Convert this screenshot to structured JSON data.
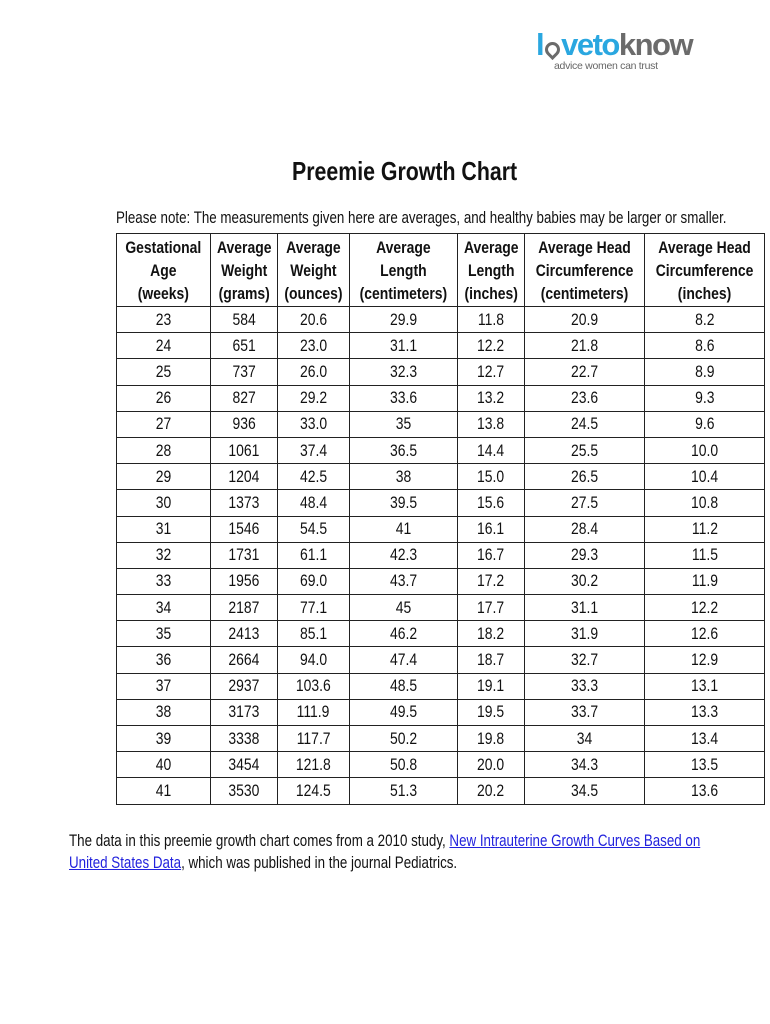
{
  "logo": {
    "brand": "lovetoknow",
    "tagline": "advice women can trust",
    "colors": {
      "blue": "#2aa7e0",
      "gray": "#6b6b6b"
    }
  },
  "title": "Preemie Growth Chart",
  "note": "Please note:  The measurements given here are averages, and healthy babies may be larger or smaller.",
  "table": {
    "headers": [
      [
        "Gestational",
        "Age",
        "(weeks)"
      ],
      [
        "Average",
        "Weight",
        "(grams)"
      ],
      [
        "Average",
        "Weight",
        "(ounces)"
      ],
      [
        "Average",
        "Length",
        "(centimeters)"
      ],
      [
        "Average",
        "Length",
        "(inches)"
      ],
      [
        "Average Head",
        "Circumference",
        "(centimeters)"
      ],
      [
        "Average Head",
        "Circumference",
        "(inches)"
      ]
    ],
    "rows": [
      [
        "23",
        "584",
        "20.6",
        "29.9",
        "11.8",
        "20.9",
        "8.2"
      ],
      [
        "24",
        "651",
        "23.0",
        "31.1",
        "12.2",
        "21.8",
        "8.6"
      ],
      [
        "25",
        "737",
        "26.0",
        "32.3",
        "12.7",
        "22.7",
        "8.9"
      ],
      [
        "26",
        "827",
        "29.2",
        "33.6",
        "13.2",
        "23.6",
        "9.3"
      ],
      [
        "27",
        "936",
        "33.0",
        "35",
        "13.8",
        "24.5",
        "9.6"
      ],
      [
        "28",
        "1061",
        "37.4",
        "36.5",
        "14.4",
        "25.5",
        "10.0"
      ],
      [
        "29",
        "1204",
        "42.5",
        "38",
        "15.0",
        "26.5",
        "10.4"
      ],
      [
        "30",
        "1373",
        "48.4",
        "39.5",
        "15.6",
        "27.5",
        "10.8"
      ],
      [
        "31",
        "1546",
        "54.5",
        "41",
        "16.1",
        "28.4",
        "11.2"
      ],
      [
        "32",
        "1731",
        "61.1",
        "42.3",
        "16.7",
        "29.3",
        "11.5"
      ],
      [
        "33",
        "1956",
        "69.0",
        "43.7",
        "17.2",
        "30.2",
        "11.9"
      ],
      [
        "34",
        "2187",
        "77.1",
        "45",
        "17.7",
        "31.1",
        "12.2"
      ],
      [
        "35",
        "2413",
        "85.1",
        "46.2",
        "18.2",
        "31.9",
        "12.6"
      ],
      [
        "36",
        "2664",
        "94.0",
        "47.4",
        "18.7",
        "32.7",
        "12.9"
      ],
      [
        "37",
        "2937",
        "103.6",
        "48.5",
        "19.1",
        "33.3",
        "13.1"
      ],
      [
        "38",
        "3173",
        "111.9",
        "49.5",
        "19.5",
        "33.7",
        "13.3"
      ],
      [
        "39",
        "3338",
        "117.7",
        "50.2",
        "19.8",
        "34",
        "13.4"
      ],
      [
        "40",
        "3454",
        "121.8",
        "50.8",
        "20.0",
        "34.3",
        "13.5"
      ],
      [
        "41",
        "3530",
        "124.5",
        "51.3",
        "20.2",
        "34.5",
        "13.6"
      ]
    ]
  },
  "footer": {
    "text_before": "The data in this preemie growth chart comes from a 2010 study, ",
    "link_text": "New Intrauterine Growth Curves Based on United States Data",
    "text_after": ", which was published in the journal Pediatrics.",
    "link_color": "#2222dd"
  }
}
